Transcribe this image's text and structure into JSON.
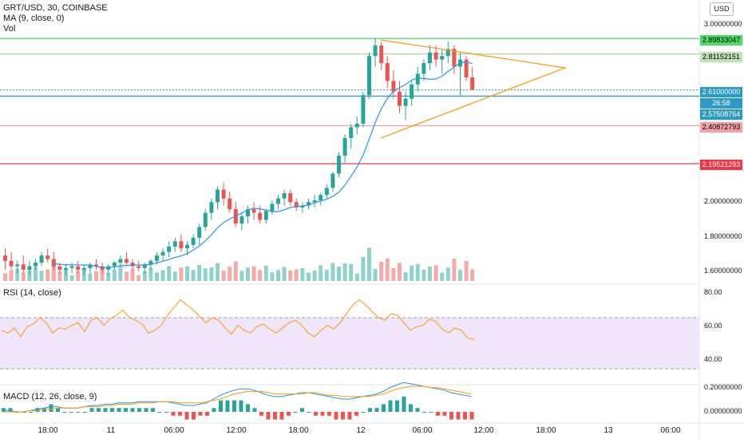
{
  "legend": {
    "symbol": "GRT/USD, 30, COINBASE",
    "ma": "MA (9, close, 0)",
    "vol": "Vol",
    "rsi": "RSI (14, close)",
    "macd": "MACD (12, 26, close, 9)"
  },
  "currency_button": "USD",
  "price_axis": {
    "labels": [
      "3.00000000",
      "2.00000000",
      "1.80000000",
      "1.60000000"
    ]
  },
  "price_tags": [
    {
      "text": "2.89833047",
      "color": "#4cd964",
      "dark": false
    },
    {
      "text": "2.81152151",
      "color": "#bfe3b6",
      "dark": false
    },
    {
      "text": "2.61000000",
      "color": "#2a9ac7",
      "dark": true
    },
    {
      "text": "26:58",
      "color": "#2a9ac7",
      "dark": true
    },
    {
      "text": "2.57508764",
      "color": "#2a9ac7",
      "dark": true
    },
    {
      "text": "2.40872793",
      "color": "#f4a0a6",
      "dark": false
    },
    {
      "text": "2.19521293",
      "color": "#f23645",
      "dark": true
    }
  ],
  "rsi_axis": {
    "labels": [
      "80.00",
      "60.00",
      "40.00"
    ]
  },
  "macd_axis": {
    "labels": [
      "0.20000000",
      "0.00000000"
    ]
  },
  "time_axis": {
    "labels": [
      "18:00",
      "11",
      "06:00",
      "12:00",
      "18:00",
      "12",
      "06:00",
      "12:00",
      "18:00",
      "13",
      "06:00"
    ]
  },
  "colors": {
    "up": "#26a69a",
    "down": "#ef5350",
    "vol_up": "#8dd3cb",
    "vol_down": "#f7a9a7",
    "ma": "#2196f3",
    "rsi": "#ff9800",
    "rsi_band": "#f0e6fc",
    "macd": "#2196f3",
    "signal": "#ff9800",
    "triangle": "#ff9800"
  },
  "chart_data": [
    {
      "type": "candlestick",
      "title": "GRT/USD, 30, COINBASE",
      "series": [
        {
          "name": "GRT/USD",
          "values": [
            [
              1.68,
              1.72,
              1.6,
              1.65
            ],
            [
              1.65,
              1.7,
              1.6,
              1.62
            ],
            [
              1.62,
              1.65,
              1.58,
              1.63
            ],
            [
              1.63,
              1.68,
              1.58,
              1.6
            ],
            [
              1.6,
              1.65,
              1.57,
              1.62
            ],
            [
              1.62,
              1.66,
              1.6,
              1.64
            ],
            [
              1.64,
              1.7,
              1.62,
              1.68
            ],
            [
              1.68,
              1.72,
              1.64,
              1.66
            ],
            [
              1.66,
              1.7,
              1.6,
              1.62
            ],
            [
              1.62,
              1.64,
              1.58,
              1.6
            ],
            [
              1.6,
              1.63,
              1.57,
              1.61
            ],
            [
              1.61,
              1.64,
              1.58,
              1.62
            ],
            [
              1.62,
              1.65,
              1.58,
              1.6
            ],
            [
              1.6,
              1.63,
              1.57,
              1.61
            ],
            [
              1.61,
              1.64,
              1.58,
              1.63
            ],
            [
              1.63,
              1.66,
              1.6,
              1.62
            ],
            [
              1.62,
              1.64,
              1.58,
              1.6
            ],
            [
              1.6,
              1.63,
              1.57,
              1.62
            ],
            [
              1.62,
              1.65,
              1.6,
              1.64
            ],
            [
              1.64,
              1.68,
              1.62,
              1.66
            ],
            [
              1.66,
              1.7,
              1.63,
              1.64
            ],
            [
              1.64,
              1.66,
              1.6,
              1.62
            ],
            [
              1.62,
              1.65,
              1.59,
              1.61
            ],
            [
              1.61,
              1.64,
              1.58,
              1.63
            ],
            [
              1.63,
              1.66,
              1.6,
              1.65
            ],
            [
              1.65,
              1.7,
              1.63,
              1.68
            ],
            [
              1.68,
              1.72,
              1.65,
              1.7
            ],
            [
              1.7,
              1.76,
              1.67,
              1.73
            ],
            [
              1.73,
              1.78,
              1.7,
              1.76
            ],
            [
              1.76,
              1.8,
              1.7,
              1.72
            ],
            [
              1.72,
              1.76,
              1.68,
              1.74
            ],
            [
              1.74,
              1.8,
              1.72,
              1.78
            ],
            [
              1.78,
              1.86,
              1.74,
              1.84
            ],
            [
              1.84,
              1.94,
              1.82,
              1.92
            ],
            [
              1.92,
              2.0,
              1.88,
              1.98
            ],
            [
              1.98,
              2.07,
              1.94,
              2.05
            ],
            [
              2.05,
              2.09,
              1.96,
              2.0
            ],
            [
              2.0,
              2.04,
              1.92,
              1.94
            ],
            [
              1.94,
              1.98,
              1.84,
              1.86
            ],
            [
              1.86,
              1.92,
              1.82,
              1.9
            ],
            [
              1.9,
              1.96,
              1.86,
              1.94
            ],
            [
              1.94,
              1.98,
              1.88,
              1.92
            ],
            [
              1.92,
              1.96,
              1.86,
              1.88
            ],
            [
              1.88,
              1.94,
              1.86,
              1.93
            ],
            [
              1.93,
              1.99,
              1.91,
              1.97
            ],
            [
              1.97,
              2.02,
              1.94,
              2.0
            ],
            [
              2.0,
              2.05,
              1.96,
              2.03
            ],
            [
              2.03,
              2.05,
              1.96,
              1.98
            ],
            [
              1.98,
              2.0,
              1.93,
              1.95
            ],
            [
              1.95,
              1.98,
              1.92,
              1.96
            ],
            [
              1.96,
              2.0,
              1.94,
              1.98
            ],
            [
              1.98,
              2.02,
              1.95,
              1.99
            ],
            [
              1.99,
              2.03,
              1.96,
              2.02
            ],
            [
              2.02,
              2.08,
              2.0,
              2.06
            ],
            [
              2.06,
              2.15,
              2.04,
              2.14
            ],
            [
              2.14,
              2.26,
              2.12,
              2.24
            ],
            [
              2.24,
              2.36,
              2.2,
              2.34
            ],
            [
              2.34,
              2.42,
              2.28,
              2.4
            ],
            [
              2.4,
              2.46,
              2.36,
              2.42
            ],
            [
              2.42,
              2.6,
              2.4,
              2.58
            ],
            [
              2.58,
              2.82,
              2.56,
              2.8
            ],
            [
              2.8,
              2.9,
              2.74,
              2.86
            ],
            [
              2.86,
              2.88,
              2.72,
              2.76
            ],
            [
              2.76,
              2.8,
              2.62,
              2.66
            ],
            [
              2.66,
              2.72,
              2.56,
              2.6
            ],
            [
              2.6,
              2.66,
              2.48,
              2.52
            ],
            [
              2.52,
              2.6,
              2.44,
              2.56
            ],
            [
              2.56,
              2.66,
              2.52,
              2.64
            ],
            [
              2.64,
              2.74,
              2.6,
              2.7
            ],
            [
              2.7,
              2.78,
              2.66,
              2.76
            ],
            [
              2.76,
              2.86,
              2.72,
              2.82
            ],
            [
              2.82,
              2.86,
              2.74,
              2.78
            ],
            [
              2.78,
              2.84,
              2.7,
              2.8
            ],
            [
              2.8,
              2.88,
              2.76,
              2.84
            ],
            [
              2.84,
              2.86,
              2.7,
              2.74
            ],
            [
              2.74,
              2.82,
              2.58,
              2.78
            ],
            [
              2.78,
              2.8,
              2.66,
              2.68
            ],
            [
              2.68,
              2.74,
              2.62,
              2.61
            ]
          ]
        }
      ],
      "annotations": [
        "2.89833047",
        "2.81152151",
        "2.61000000",
        "2.57508764",
        "2.40872793",
        "2.19521293",
        "26:58"
      ]
    },
    {
      "type": "line",
      "title": "RSI (14, close)",
      "ylim": [
        20,
        90
      ],
      "series": [
        {
          "name": "RSI",
          "values": [
            60,
            58,
            62,
            55,
            63,
            65,
            70,
            66,
            58,
            62,
            61,
            64,
            66,
            59,
            68,
            70,
            64,
            69,
            72,
            76,
            70,
            68,
            65,
            58,
            60,
            64,
            72,
            78,
            84,
            80,
            76,
            71,
            66,
            70,
            68,
            62,
            57,
            64,
            60,
            58,
            63,
            65,
            61,
            58,
            62,
            66,
            68,
            64,
            58,
            55,
            60,
            64,
            61,
            66,
            73,
            80,
            84,
            80,
            75,
            70,
            68,
            73,
            72,
            66,
            60,
            63,
            64,
            69,
            67,
            61,
            58,
            62,
            60,
            54,
            53
          ]
        }
      ]
    },
    {
      "type": "line",
      "title": "MACD (12, 26, close, 9)",
      "series": [
        {
          "name": "MACD",
          "values": [
            0.01,
            0.01,
            0.0,
            0.0,
            0.01,
            0.02,
            0.03,
            0.04,
            0.04,
            0.03,
            0.03,
            0.03,
            0.04,
            0.05,
            0.05,
            0.06,
            0.06,
            0.07,
            0.07,
            0.07,
            0.08,
            0.08,
            0.08,
            0.08,
            0.08,
            0.07,
            0.06,
            0.05,
            0.05,
            0.06,
            0.07,
            0.1,
            0.13,
            0.15,
            0.17,
            0.18,
            0.18,
            0.17,
            0.15,
            0.13,
            0.12,
            0.12,
            0.13,
            0.14,
            0.15,
            0.15,
            0.14,
            0.13,
            0.12,
            0.11,
            0.1,
            0.1,
            0.11,
            0.12,
            0.13,
            0.14,
            0.16,
            0.19,
            0.21,
            0.23,
            0.22,
            0.21,
            0.2,
            0.19,
            0.18,
            0.17,
            0.15,
            0.14,
            0.13,
            0.12
          ]
        },
        {
          "name": "Signal",
          "values": [
            0.0,
            0.0,
            0.0,
            0.0,
            0.01,
            0.01,
            0.02,
            0.02,
            0.03,
            0.03,
            0.03,
            0.03,
            0.04,
            0.04,
            0.04,
            0.05,
            0.05,
            0.06,
            0.06,
            0.06,
            0.07,
            0.07,
            0.07,
            0.08,
            0.08,
            0.08,
            0.07,
            0.07,
            0.07,
            0.07,
            0.08,
            0.09,
            0.1,
            0.12,
            0.14,
            0.15,
            0.16,
            0.16,
            0.16,
            0.15,
            0.14,
            0.14,
            0.14,
            0.14,
            0.14,
            0.15,
            0.15,
            0.14,
            0.13,
            0.13,
            0.12,
            0.12,
            0.12,
            0.12,
            0.12,
            0.13,
            0.14,
            0.16,
            0.18,
            0.19,
            0.2,
            0.2,
            0.2,
            0.19,
            0.19,
            0.18,
            0.17,
            0.16,
            0.15,
            0.14
          ]
        }
      ]
    }
  ]
}
